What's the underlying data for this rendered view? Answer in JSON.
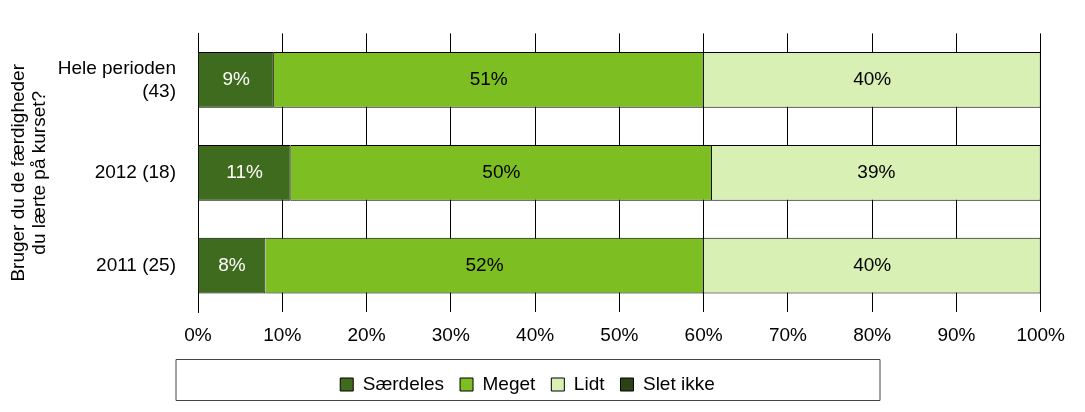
{
  "chart_data": {
    "type": "bar",
    "orientation": "horizontal",
    "stacked": true,
    "ylabel": "Bruger du de færdigheder\ndu lærte på kurset?",
    "categories": [
      "Hele perioden (43)",
      "2012 (18)",
      "2011 (25)"
    ],
    "series": [
      {
        "name": "Særdeles",
        "color": "#3f6b1e",
        "values": [
          9,
          11,
          8
        ],
        "value_labels": [
          "9%",
          "11%",
          "8%"
        ]
      },
      {
        "name": "Meget",
        "color": "#7dbf22",
        "values": [
          51,
          50,
          52
        ],
        "value_labels": [
          "51%",
          "50%",
          "52%"
        ]
      },
      {
        "name": "Lidt",
        "color": "#d9f0b4",
        "values": [
          40,
          39,
          40
        ],
        "value_labels": [
          "40%",
          "39%",
          "40%"
        ]
      },
      {
        "name": "Slet ikke",
        "color": "#2b4214",
        "values": [
          null,
          null,
          null
        ]
      }
    ],
    "xlim": [
      0,
      100
    ],
    "xticks": [
      {
        "value": 0,
        "label": "0%"
      },
      {
        "value": 10,
        "label": "10%"
      },
      {
        "value": 20,
        "label": "20%"
      },
      {
        "value": 30,
        "label": "30%"
      },
      {
        "value": 40,
        "label": "40%"
      },
      {
        "value": 50,
        "label": "50%"
      },
      {
        "value": 60,
        "label": "60%"
      },
      {
        "value": 70,
        "label": "70%"
      },
      {
        "value": 80,
        "label": "80%"
      },
      {
        "value": 90,
        "label": "90%"
      },
      {
        "value": 100,
        "label": "100%"
      }
    ],
    "grid": "x",
    "legend": "bottom"
  }
}
